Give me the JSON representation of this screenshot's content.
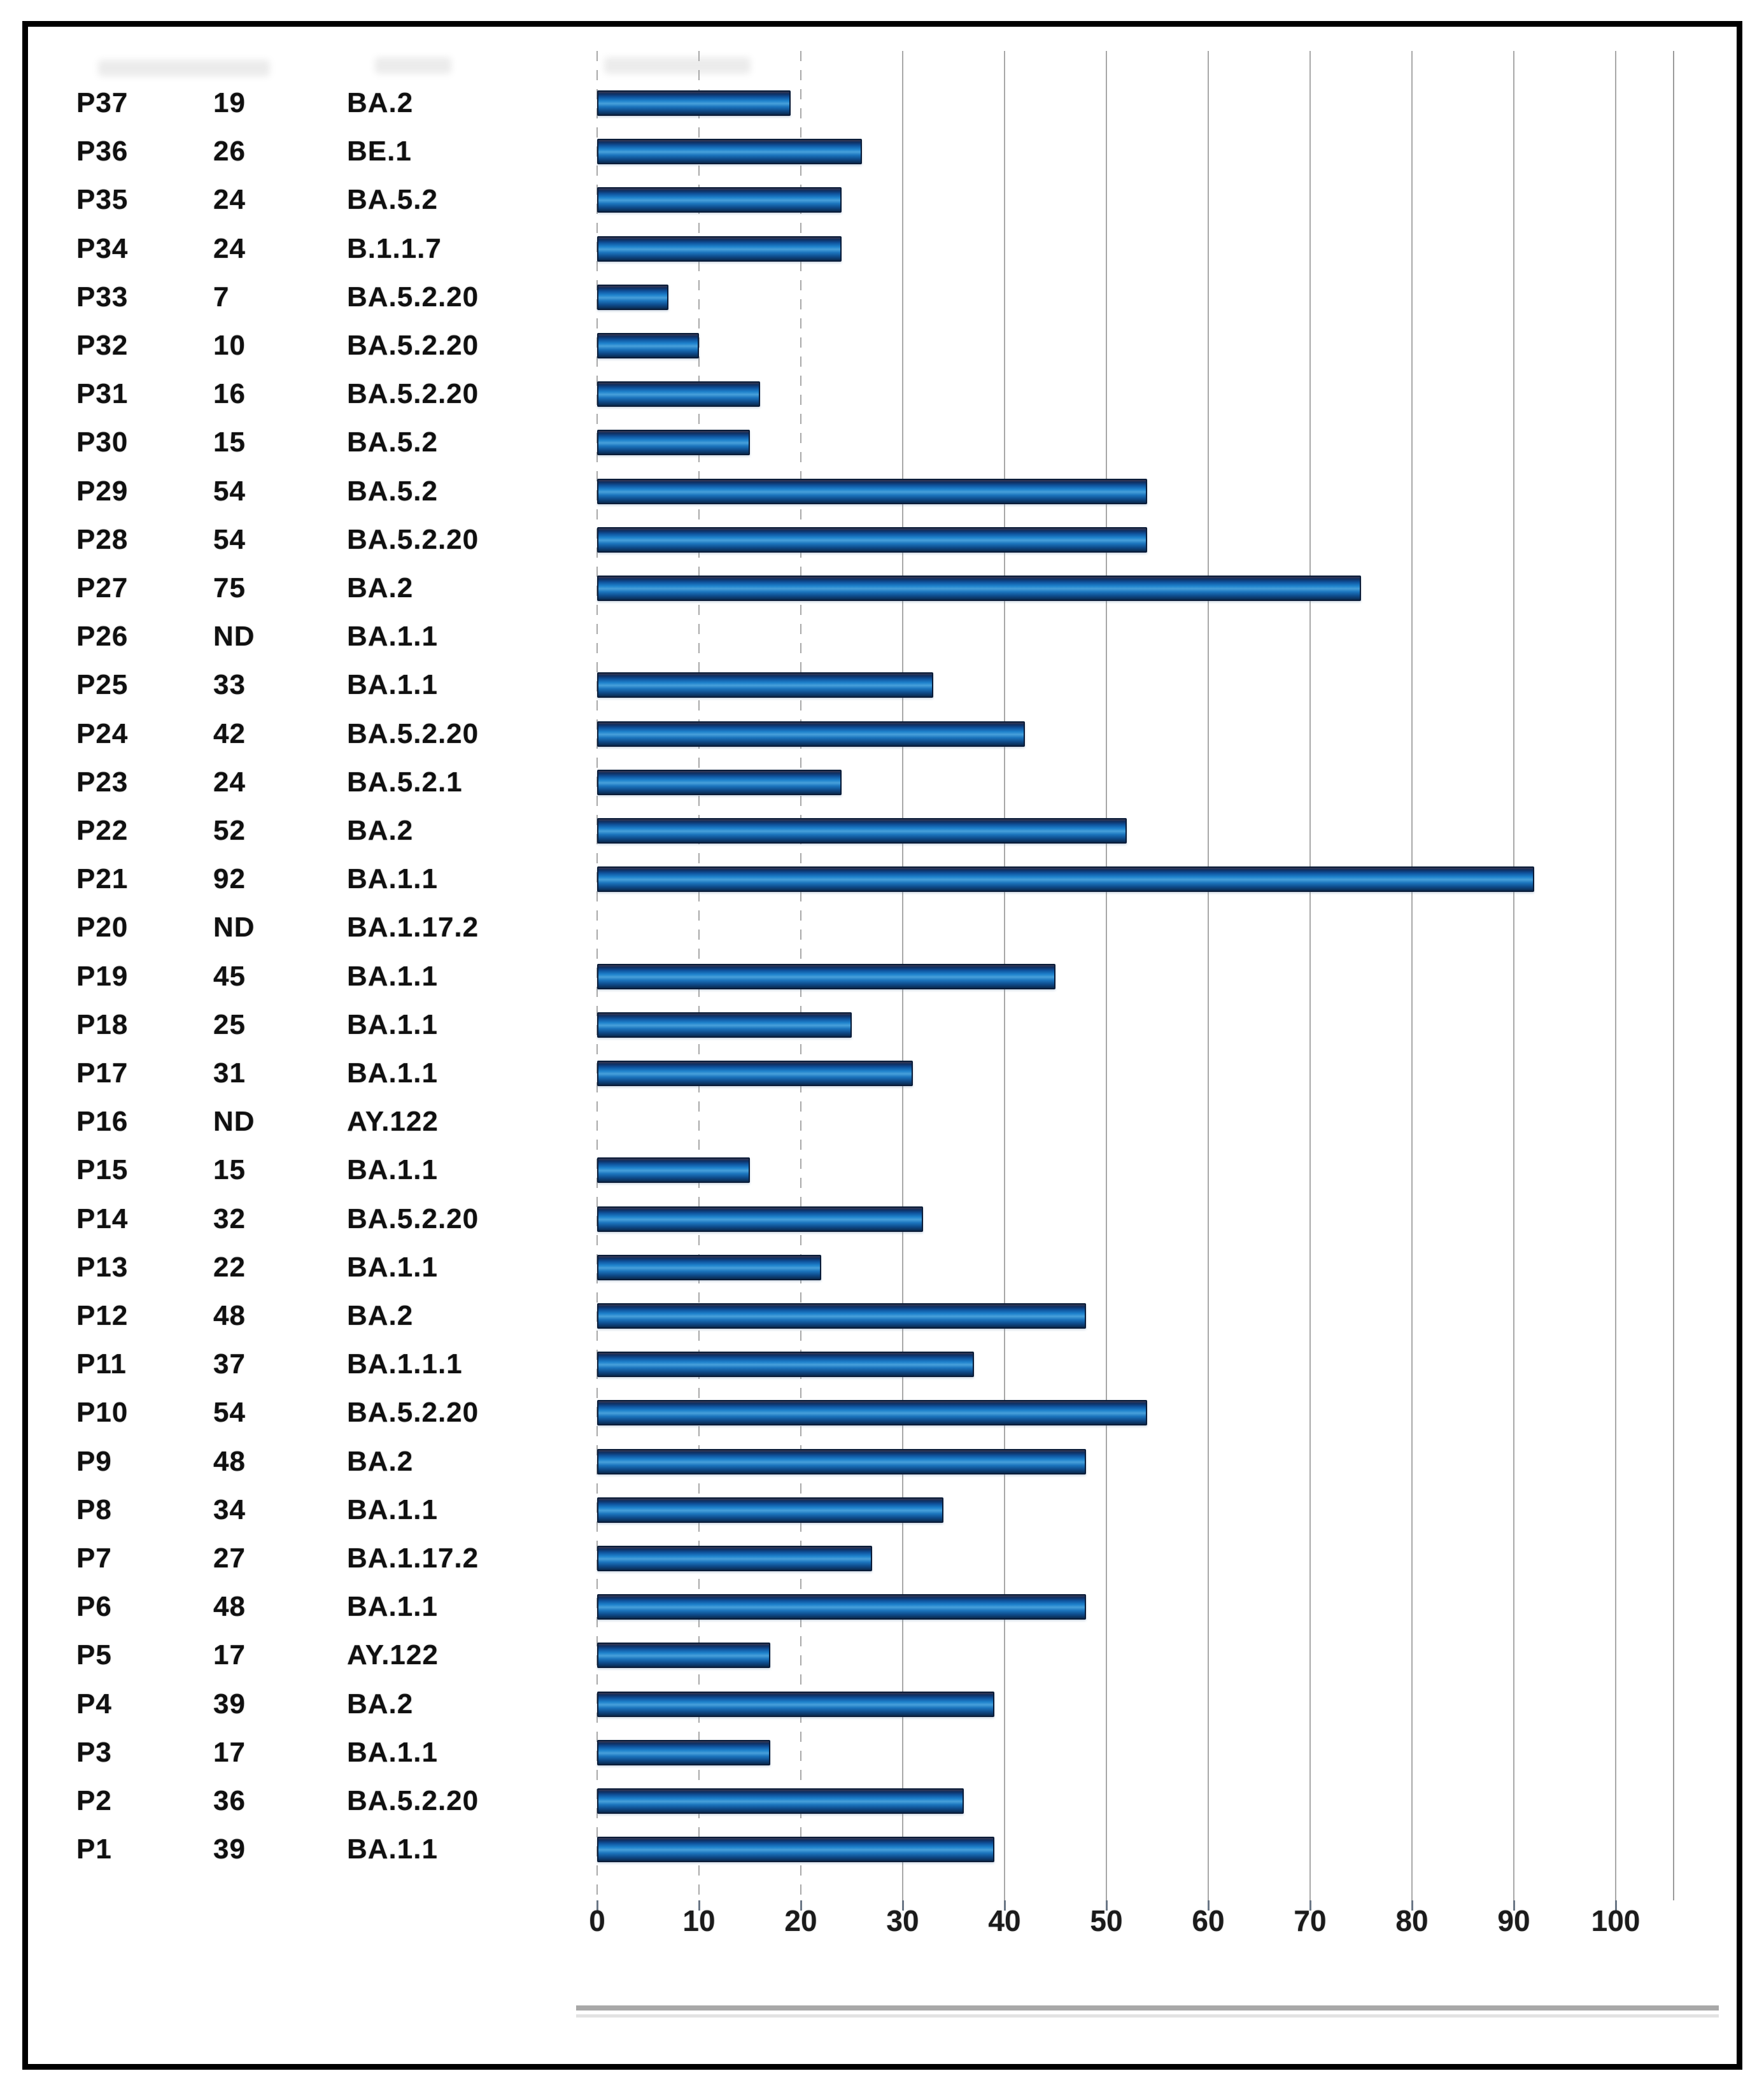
{
  "chart_data": {
    "type": "bar",
    "orientation": "horizontal",
    "title": "",
    "xlabel": "",
    "ylabel": "",
    "xlim": [
      0,
      100
    ],
    "xticks": [
      0,
      10,
      20,
      30,
      40,
      50,
      60,
      70,
      80,
      90,
      100
    ],
    "grid": true,
    "legend": false,
    "categories": [
      "P37",
      "P36",
      "P35",
      "P34",
      "P33",
      "P32",
      "P31",
      "P30",
      "P29",
      "P28",
      "P27",
      "P26",
      "P25",
      "P24",
      "P23",
      "P22",
      "P21",
      "P20",
      "P19",
      "P18",
      "P17",
      "P16",
      "P15",
      "P14",
      "P13",
      "P12",
      "P11",
      "P10",
      "P9",
      "P8",
      "P7",
      "P6",
      "P5",
      "P4",
      "P3",
      "P2",
      "P1"
    ],
    "value_labels": [
      "19",
      "26",
      "24",
      "24",
      "7",
      "10",
      "16",
      "15",
      "54",
      "54",
      "75",
      "ND",
      "33",
      "42",
      "24",
      "52",
      "92",
      "ND",
      "45",
      "25",
      "31",
      "ND",
      "15",
      "32",
      "22",
      "48",
      "37",
      "54",
      "48",
      "34",
      "27",
      "48",
      "17",
      "39",
      "17",
      "36",
      "39"
    ],
    "values": [
      19,
      26,
      24,
      24,
      7,
      10,
      16,
      15,
      54,
      54,
      75,
      null,
      33,
      42,
      24,
      52,
      92,
      null,
      45,
      25,
      31,
      null,
      15,
      32,
      22,
      48,
      37,
      54,
      48,
      34,
      27,
      48,
      17,
      39,
      17,
      36,
      39
    ],
    "variants": [
      "BA.2",
      "BE.1",
      "BA.5.2",
      "B.1.1.7",
      "BA.5.2.20",
      "BA.5.2.20",
      "BA.5.2.20",
      "BA.5.2",
      "BA.5.2",
      "BA.5.2.20",
      "BA.2",
      "BA.1.1",
      "BA.1.1",
      "BA.5.2.20",
      "BA.5.2.1",
      "BA.2",
      "BA.1.1",
      "BA.1.17.2",
      "BA.1.1",
      "BA.1.1",
      "BA.1.1",
      "AY.122",
      "BA.1.1",
      "BA.5.2.20",
      "BA.1.1",
      "BA.2",
      "BA.1.1.1",
      "BA.5.2.20",
      "BA.2",
      "BA.1.1",
      "BA.1.17.2",
      "BA.1.1",
      "AY.122",
      "BA.2",
      "BA.1.1",
      "BA.5.2.20",
      "BA.1.1"
    ]
  },
  "colors": {
    "bar_mid": "#1e82cc",
    "bar_light": "#47a0da",
    "bar_dark": "#0a2a50",
    "bar_outline": "#0a1c38",
    "gridline": "#a8a8a8",
    "baseline": "#a8a8a8",
    "text": "#101010",
    "frame_border": "#000000"
  }
}
